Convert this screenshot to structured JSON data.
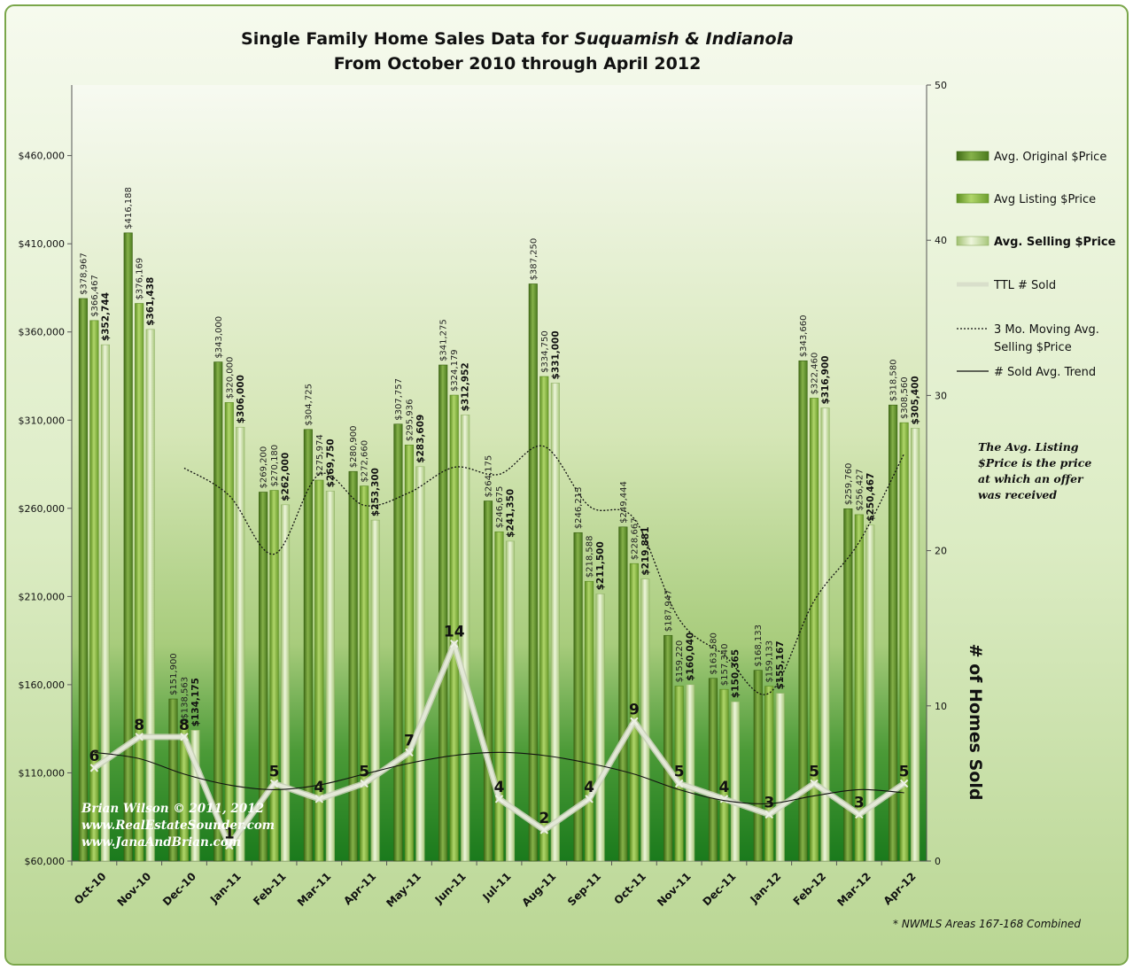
{
  "chart_data": {
    "type": "bar",
    "title_line1_prefix": "Single Family Home Sales Data for ",
    "title_line1_italic": "Suquamish & Indianola",
    "title_line2": "From October 2010 through April 2012",
    "categories": [
      "Oct-10",
      "Nov-10",
      "Dec-10",
      "Jan-11",
      "Feb-11",
      "Mar-11",
      "Apr-11",
      "May-11",
      "Jun-11",
      "Jul-11",
      "Aug-11",
      "Sep-11",
      "Oct-11",
      "Nov-11",
      "Dec-11",
      "Jan-12",
      "Feb-12",
      "Mar-12",
      "Apr-12"
    ],
    "series": [
      {
        "name": "Avg. Original $Price",
        "values": [
          378967,
          416188,
          151900,
          343000,
          269200,
          304725,
          280900,
          307757,
          341275,
          264175,
          387250,
          246213,
          249444,
          187947,
          163580,
          168133,
          343660,
          259760,
          318580
        ],
        "labels": [
          "$378,967",
          "$416,188",
          "$151,900",
          "$343,000",
          "$269,200",
          "$304,725",
          "$280,900",
          "$307,757",
          "$341,275",
          "$264,175",
          "$387,250",
          "$246,213",
          "$249,444",
          "$187,947",
          "$163,580",
          "$168,133",
          "$343,660",
          "$259,760",
          "$318,580"
        ]
      },
      {
        "name": "Avg Listing $Price",
        "values": [
          366467,
          376169,
          138563,
          320000,
          270180,
          275974,
          272660,
          295936,
          324179,
          246675,
          334750,
          218588,
          228667,
          159220,
          157340,
          159133,
          322460,
          256427,
          308560
        ],
        "labels": [
          "$366,467",
          "$376,169",
          "$138,563",
          "$320,000",
          "$270,180",
          "$275,974",
          "$272,660",
          "$295,936",
          "$324,179",
          "$246,675",
          "$334,750",
          "$218,588",
          "$228,667",
          "$159,220",
          "$157,340",
          "$159,133",
          "$322,460",
          "$256,427",
          "$308,560"
        ]
      },
      {
        "name": "Avg. Selling $Price",
        "values": [
          352744,
          361438,
          134175,
          306000,
          262000,
          269750,
          253300,
          283609,
          312952,
          241350,
          331000,
          211500,
          219881,
          160040,
          150365,
          155167,
          316900,
          250467,
          305400
        ],
        "labels": [
          "$352,744",
          "$361,438",
          "$134,175",
          "$306,000",
          "$262,000",
          "$269,750",
          "$253,300",
          "$283,609",
          "$312,952",
          "$241,350",
          "$331,000",
          "$211,500",
          "$219,881",
          "$160,040",
          "$150,365",
          "$155,167",
          "$316,900",
          "$250,467",
          "$305,400"
        ]
      },
      {
        "name": "TTL # Sold",
        "axis": "secondary",
        "values": [
          6,
          8,
          8,
          1,
          5,
          4,
          5,
          7,
          14,
          4,
          2,
          4,
          9,
          5,
          4,
          3,
          5,
          3,
          5
        ],
        "labels": [
          "6",
          "8",
          "8",
          "1",
          "5",
          "4",
          "5",
          "7",
          "14",
          "4",
          "2",
          "4",
          "9",
          "5",
          "4",
          "3",
          "5",
          "3",
          "5"
        ]
      },
      {
        "name": "3 Mo. Moving Avg. Selling $Price",
        "style": "dotted",
        "values": [
          null,
          null,
          282786,
          267204,
          234058,
          279250,
          261683,
          268886,
          283287,
          279300,
          295101,
          261283,
          254127,
          197140,
          176762,
          155191,
          207477,
          240845,
          290922
        ]
      },
      {
        "name": "# Sold Avg. Trend",
        "style": "solid",
        "axis": "secondary",
        "values": [
          7.0,
          6.6,
          5.6,
          4.9,
          4.6,
          4.9,
          5.6,
          6.3,
          6.8,
          7.0,
          6.8,
          6.3,
          5.6,
          4.6,
          3.9,
          3.7,
          4.2,
          4.6,
          4.4
        ]
      }
    ],
    "legend_names": [
      "Avg. Original $Price",
      "Avg Listing $Price",
      "Avg. Selling $Price",
      "TTL # Sold",
      "3 Mo. Moving Avg.",
      "Selling $Price",
      "# Sold Avg. Trend"
    ],
    "y_left": {
      "ylim": [
        60000,
        500000
      ],
      "ticks": [
        "$60,000",
        "$110,000",
        "$160,000",
        "$210,000",
        "$260,000",
        "$310,000",
        "$360,000",
        "$410,000",
        "$460,000"
      ]
    },
    "y_right": {
      "ylim": [
        0,
        50
      ],
      "ticks": [
        "0",
        "10",
        "20",
        "30",
        "40",
        "50"
      ],
      "label": "# of Homes Sold"
    },
    "legend_position": "right",
    "grid": false,
    "colors": {
      "original": "#5f8a2a",
      "listing": "#8bb541",
      "selling": "#cfe2a5",
      "sold_line": "#d6dcc8",
      "background_top": "#f2f7e8",
      "background_bottom": "#1f7a1f",
      "frame": "#6f9e44"
    },
    "annotation": [
      "The Avg. Listing",
      "$Price is the price",
      "at which an offer",
      "was received"
    ],
    "footnote": "* NWMLS Areas 167-168 Combined",
    "credit": [
      "Brian Wilson  © 2011, 2012",
      "www.RealEstateSounder.com",
      "www.JanaAndBrian.com"
    ]
  }
}
